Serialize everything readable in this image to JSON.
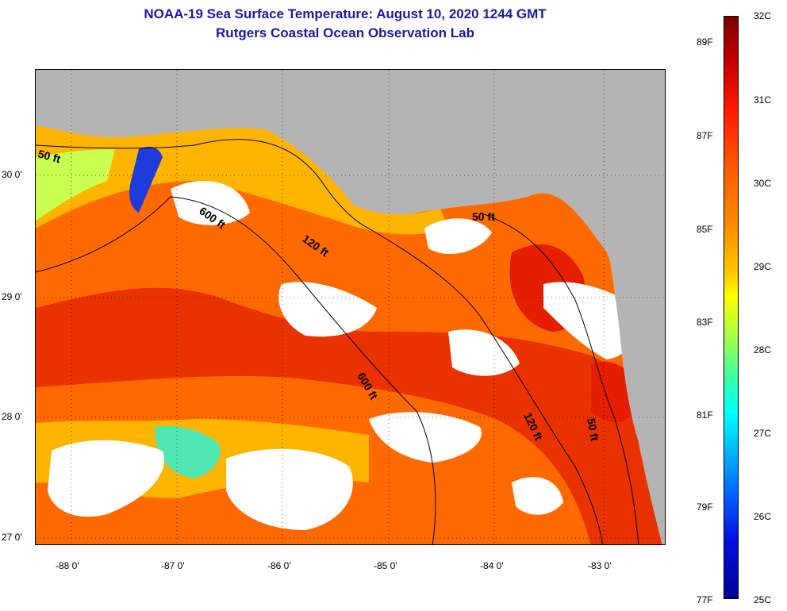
{
  "title": {
    "line1": "NOAA-19 Sea Surface Temperature:  August 10, 2020 1244 GMT",
    "line2": "Rutgers Coastal Ocean Observation Lab"
  },
  "map": {
    "lat_labels": [
      "30 0'",
      "29 0'",
      "28 0'",
      "27 0'"
    ],
    "lon_labels": [
      "-88 0'",
      "-87 0'",
      "-86 0'",
      "-85 0'",
      "-84 0'",
      "-83 0'"
    ],
    "contours": {
      "c50_a": "50 ft",
      "c600_a": "600 ft",
      "c120_a": "120 ft",
      "c50_b": "50 ft",
      "c600_b": "600 ft",
      "c120_b": "120 ft",
      "c50_c": "50 ft"
    },
    "colors": {
      "land": "#b4b4b4",
      "cloud": "#ffffff",
      "warm": "#ff5a00",
      "hot": "#e61e00",
      "orange": "#ff8c1a",
      "yellow": "#ffe600",
      "green": "#8cff50",
      "blue": "#1e3cdc"
    }
  },
  "colorbar": {
    "fahrenheit": [
      "89F",
      "87F",
      "85F",
      "83F",
      "81F",
      "79F",
      "77F"
    ],
    "celsius": [
      "32C",
      "31C",
      "30C",
      "29C",
      "28C",
      "27C",
      "26C",
      "25C"
    ]
  }
}
